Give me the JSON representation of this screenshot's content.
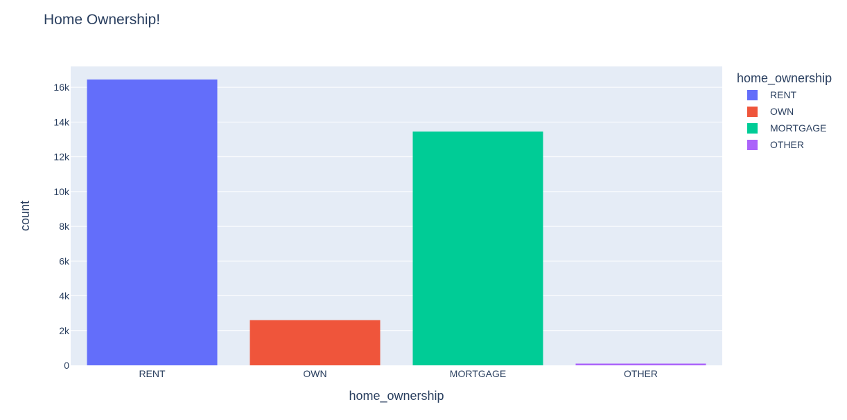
{
  "chart_data": {
    "type": "bar",
    "title": "Home Ownership!",
    "xlabel": "home_ownership",
    "ylabel": "count",
    "categories": [
      "RENT",
      "OWN",
      "MORTGAGE",
      "OTHER"
    ],
    "values": [
      16450,
      2600,
      13450,
      100
    ],
    "colors": [
      "#636efa",
      "#ef553b",
      "#00cc96",
      "#ab63fa"
    ],
    "ylim": [
      0,
      17200
    ],
    "yticks": [
      0,
      2000,
      4000,
      6000,
      8000,
      10000,
      12000,
      14000,
      16000
    ],
    "ytick_labels": [
      "0",
      "2k",
      "4k",
      "6k",
      "8k",
      "10k",
      "12k",
      "14k",
      "16k"
    ],
    "grid": true,
    "plot_bgcolor": "#e5ecf6",
    "legend": {
      "title": "home_ownership",
      "placement": "right",
      "entries": [
        "RENT",
        "OWN",
        "MORTGAGE",
        "OTHER"
      ]
    }
  }
}
